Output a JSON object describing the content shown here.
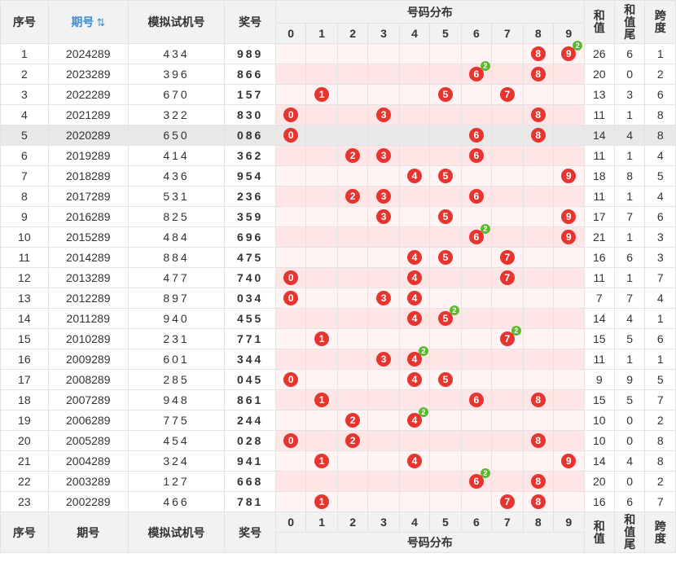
{
  "header": {
    "seq": "序号",
    "period": "期号",
    "sort_glyph": "⇅",
    "sim": "模拟试机号",
    "prize": "奖号",
    "dist": "号码分布",
    "digits": [
      "0",
      "1",
      "2",
      "3",
      "4",
      "5",
      "6",
      "7",
      "8",
      "9"
    ],
    "sum_a": "和",
    "sum_b": "值",
    "tail_a": "和",
    "tail_b": "值",
    "tail_c": "尾",
    "span_a": "跨",
    "span_b": "度"
  },
  "colors": {
    "ball": "#e8342f",
    "repeat": "#5cb82e",
    "prize_text": "#e0282e",
    "row_highlight": "#e8e8e8"
  },
  "highlight_row": 5,
  "rows": [
    {
      "seq": "1",
      "period": "2024289",
      "sim": "434",
      "prize": "989",
      "sum": "26",
      "tail": "6",
      "span": "1"
    },
    {
      "seq": "2",
      "period": "2023289",
      "sim": "396",
      "prize": "866",
      "sum": "20",
      "tail": "0",
      "span": "2"
    },
    {
      "seq": "3",
      "period": "2022289",
      "sim": "670",
      "prize": "157",
      "sum": "13",
      "tail": "3",
      "span": "6"
    },
    {
      "seq": "4",
      "period": "2021289",
      "sim": "322",
      "prize": "830",
      "sum": "11",
      "tail": "1",
      "span": "8"
    },
    {
      "seq": "5",
      "period": "2020289",
      "sim": "650",
      "prize": "086",
      "sum": "14",
      "tail": "4",
      "span": "8"
    },
    {
      "seq": "6",
      "period": "2019289",
      "sim": "414",
      "prize": "362",
      "sum": "11",
      "tail": "1",
      "span": "4"
    },
    {
      "seq": "7",
      "period": "2018289",
      "sim": "436",
      "prize": "954",
      "sum": "18",
      "tail": "8",
      "span": "5"
    },
    {
      "seq": "8",
      "period": "2017289",
      "sim": "531",
      "prize": "236",
      "sum": "11",
      "tail": "1",
      "span": "4"
    },
    {
      "seq": "9",
      "period": "2016289",
      "sim": "825",
      "prize": "359",
      "sum": "17",
      "tail": "7",
      "span": "6"
    },
    {
      "seq": "10",
      "period": "2015289",
      "sim": "484",
      "prize": "696",
      "sum": "21",
      "tail": "1",
      "span": "3"
    },
    {
      "seq": "11",
      "period": "2014289",
      "sim": "884",
      "prize": "475",
      "sum": "16",
      "tail": "6",
      "span": "3"
    },
    {
      "seq": "12",
      "period": "2013289",
      "sim": "477",
      "prize": "740",
      "sum": "11",
      "tail": "1",
      "span": "7"
    },
    {
      "seq": "13",
      "period": "2012289",
      "sim": "897",
      "prize": "034",
      "sum": "7",
      "tail": "7",
      "span": "4"
    },
    {
      "seq": "14",
      "period": "2011289",
      "sim": "940",
      "prize": "455",
      "sum": "14",
      "tail": "4",
      "span": "1"
    },
    {
      "seq": "15",
      "period": "2010289",
      "sim": "231",
      "prize": "771",
      "sum": "15",
      "tail": "5",
      "span": "6"
    },
    {
      "seq": "16",
      "period": "2009289",
      "sim": "601",
      "prize": "344",
      "sum": "11",
      "tail": "1",
      "span": "1"
    },
    {
      "seq": "17",
      "period": "2008289",
      "sim": "285",
      "prize": "045",
      "sum": "9",
      "tail": "9",
      "span": "5"
    },
    {
      "seq": "18",
      "period": "2007289",
      "sim": "948",
      "prize": "861",
      "sum": "15",
      "tail": "5",
      "span": "7"
    },
    {
      "seq": "19",
      "period": "2006289",
      "sim": "775",
      "prize": "244",
      "sum": "10",
      "tail": "0",
      "span": "2"
    },
    {
      "seq": "20",
      "period": "2005289",
      "sim": "454",
      "prize": "028",
      "sum": "10",
      "tail": "0",
      "span": "8"
    },
    {
      "seq": "21",
      "period": "2004289",
      "sim": "324",
      "prize": "941",
      "sum": "14",
      "tail": "4",
      "span": "8"
    },
    {
      "seq": "22",
      "period": "2003289",
      "sim": "127",
      "prize": "668",
      "sum": "20",
      "tail": "0",
      "span": "2"
    },
    {
      "seq": "23",
      "period": "2002289",
      "sim": "466",
      "prize": "781",
      "sum": "16",
      "tail": "6",
      "span": "7"
    }
  ]
}
